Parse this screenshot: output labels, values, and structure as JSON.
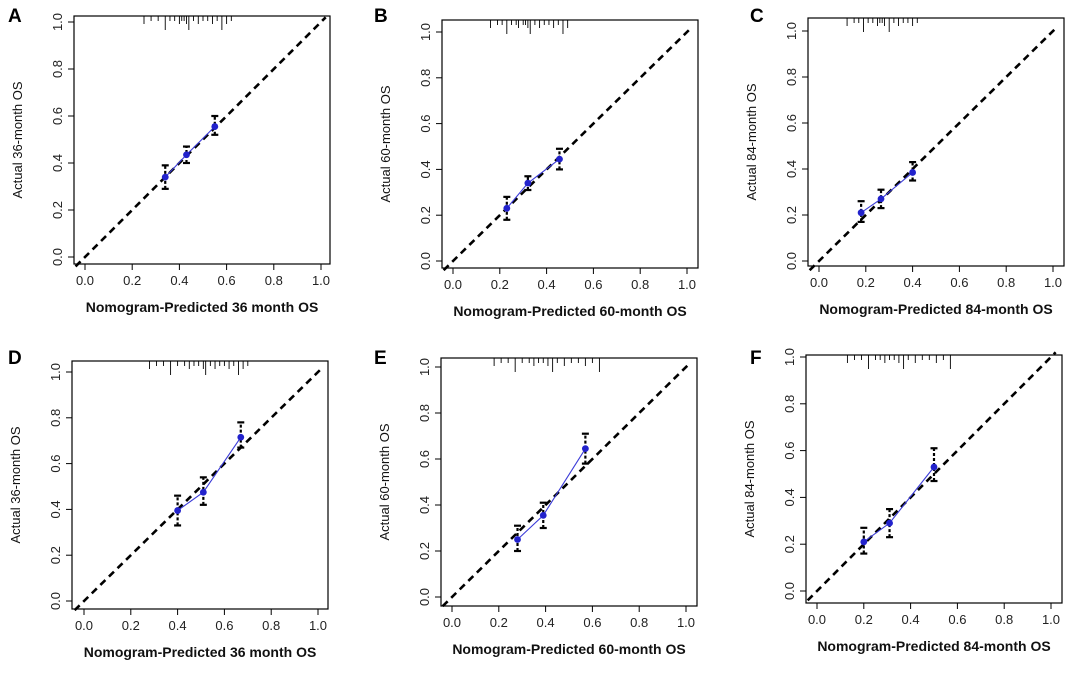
{
  "colors": {
    "series": "#3b3bd8",
    "point": "#2222cc",
    "axis": "#000000",
    "reference": "#000000"
  },
  "chart_data": [
    {
      "panel": "A",
      "type": "scatter",
      "xlabel": "Nomogram-Predicted 36 month OS",
      "ylabel": "Actual 36-month OS",
      "xlim": [
        0,
        1
      ],
      "ylim": [
        0,
        1
      ],
      "xticks": [
        "0.0",
        "0.2",
        "0.4",
        "0.6",
        "0.8",
        "1.0"
      ],
      "yticks": [
        "0.0",
        "0.2",
        "0.4",
        "0.6",
        "0.8",
        "1.0"
      ],
      "reference_line": "y = x",
      "points": [
        {
          "x": 0.34,
          "y": 0.34,
          "lo": 0.29,
          "hi": 0.39
        },
        {
          "x": 0.43,
          "y": 0.435,
          "lo": 0.4,
          "hi": 0.47
        },
        {
          "x": 0.55,
          "y": 0.555,
          "lo": 0.52,
          "hi": 0.6
        }
      ],
      "rug": [
        0.25,
        0.28,
        0.31,
        0.34,
        0.36,
        0.38,
        0.4,
        0.41,
        0.42,
        0.43,
        0.44,
        0.46,
        0.48,
        0.5,
        0.52,
        0.54,
        0.56,
        0.58,
        0.6,
        0.62
      ]
    },
    {
      "panel": "B",
      "type": "scatter",
      "xlabel": "Nomogram-Predicted 60-month OS",
      "ylabel": "Actual 60-month OS",
      "xlim": [
        0,
        1
      ],
      "ylim": [
        0,
        1
      ],
      "xticks": [
        "0.0",
        "0.2",
        "0.4",
        "0.6",
        "0.8",
        "1.0"
      ],
      "yticks": [
        "0.0",
        "0.2",
        "0.4",
        "0.6",
        "0.8",
        "1.0"
      ],
      "reference_line": "y = x",
      "points": [
        {
          "x": 0.23,
          "y": 0.23,
          "lo": 0.18,
          "hi": 0.28
        },
        {
          "x": 0.32,
          "y": 0.34,
          "lo": 0.31,
          "hi": 0.37
        },
        {
          "x": 0.455,
          "y": 0.445,
          "lo": 0.4,
          "hi": 0.49
        }
      ],
      "rug": [
        0.16,
        0.19,
        0.21,
        0.23,
        0.25,
        0.27,
        0.28,
        0.3,
        0.31,
        0.32,
        0.33,
        0.35,
        0.37,
        0.39,
        0.41,
        0.43,
        0.45,
        0.47,
        0.49
      ]
    },
    {
      "panel": "C",
      "type": "scatter",
      "xlabel": "Nomogram-Predicted 84-month OS",
      "ylabel": "Actual 84-month OS",
      "xlim": [
        0,
        1
      ],
      "ylim": [
        0,
        1
      ],
      "xticks": [
        "0.0",
        "0.2",
        "0.4",
        "0.6",
        "0.8",
        "1.0"
      ],
      "yticks": [
        "0.0",
        "0.2",
        "0.4",
        "0.6",
        "0.8",
        "1.0"
      ],
      "reference_line": "y = x",
      "points": [
        {
          "x": 0.18,
          "y": 0.21,
          "lo": 0.17,
          "hi": 0.26
        },
        {
          "x": 0.265,
          "y": 0.27,
          "lo": 0.23,
          "hi": 0.31
        },
        {
          "x": 0.4,
          "y": 0.385,
          "lo": 0.35,
          "hi": 0.43
        }
      ],
      "rug": [
        0.12,
        0.15,
        0.17,
        0.19,
        0.21,
        0.23,
        0.25,
        0.26,
        0.27,
        0.28,
        0.3,
        0.32,
        0.34,
        0.36,
        0.38,
        0.4,
        0.42
      ]
    },
    {
      "panel": "D",
      "type": "scatter",
      "xlabel": "Nomogram-Predicted 36 month OS",
      "ylabel": "Actual 36-month OS",
      "xlim": [
        0,
        1
      ],
      "ylim": [
        0,
        1
      ],
      "xticks": [
        "0.0",
        "0.2",
        "0.4",
        "0.6",
        "0.8",
        "1.0"
      ],
      "yticks": [
        "0.0",
        "0.2",
        "0.4",
        "0.6",
        "0.8",
        "1.0"
      ],
      "reference_line": "y = x",
      "points": [
        {
          "x": 0.4,
          "y": 0.395,
          "lo": 0.33,
          "hi": 0.46
        },
        {
          "x": 0.51,
          "y": 0.475,
          "lo": 0.42,
          "hi": 0.54
        },
        {
          "x": 0.67,
          "y": 0.715,
          "lo": 0.67,
          "hi": 0.78
        }
      ],
      "rug": [
        0.28,
        0.31,
        0.34,
        0.37,
        0.4,
        0.43,
        0.45,
        0.47,
        0.49,
        0.51,
        0.52,
        0.54,
        0.56,
        0.58,
        0.6,
        0.62,
        0.64,
        0.66,
        0.68,
        0.7
      ]
    },
    {
      "panel": "E",
      "type": "scatter",
      "xlabel": "Nomogram-Predicted 60-month OS",
      "ylabel": "Actual 60-month OS",
      "xlim": [
        0,
        1
      ],
      "ylim": [
        0,
        1
      ],
      "xticks": [
        "0.0",
        "0.2",
        "0.4",
        "0.6",
        "0.8",
        "1.0"
      ],
      "yticks": [
        "0.0",
        "0.2",
        "0.4",
        "0.6",
        "0.8",
        "1.0"
      ],
      "reference_line": "y = x",
      "points": [
        {
          "x": 0.28,
          "y": 0.25,
          "lo": 0.2,
          "hi": 0.31
        },
        {
          "x": 0.39,
          "y": 0.355,
          "lo": 0.3,
          "hi": 0.41
        },
        {
          "x": 0.57,
          "y": 0.645,
          "lo": 0.58,
          "hi": 0.71
        }
      ],
      "rug": [
        0.18,
        0.21,
        0.24,
        0.27,
        0.3,
        0.33,
        0.35,
        0.37,
        0.39,
        0.41,
        0.43,
        0.45,
        0.48,
        0.51,
        0.54,
        0.57,
        0.6,
        0.63
      ]
    },
    {
      "panel": "F",
      "type": "scatter",
      "xlabel": "Nomogram-Predicted 84-month OS",
      "ylabel": "Actual 84-month OS",
      "xlim": [
        0,
        1
      ],
      "ylim": [
        0,
        1
      ],
      "xticks": [
        "0.0",
        "0.2",
        "0.4",
        "0.6",
        "0.8",
        "1.0"
      ],
      "yticks": [
        "0.0",
        "0.2",
        "0.4",
        "0.6",
        "0.8",
        "1.0"
      ],
      "reference_line": "y = x",
      "points": [
        {
          "x": 0.2,
          "y": 0.21,
          "lo": 0.16,
          "hi": 0.27
        },
        {
          "x": 0.31,
          "y": 0.29,
          "lo": 0.23,
          "hi": 0.35
        },
        {
          "x": 0.5,
          "y": 0.53,
          "lo": 0.47,
          "hi": 0.61
        }
      ],
      "rug": [
        0.13,
        0.16,
        0.19,
        0.22,
        0.25,
        0.27,
        0.29,
        0.31,
        0.33,
        0.35,
        0.37,
        0.39,
        0.42,
        0.45,
        0.48,
        0.51,
        0.54,
        0.57
      ]
    }
  ]
}
